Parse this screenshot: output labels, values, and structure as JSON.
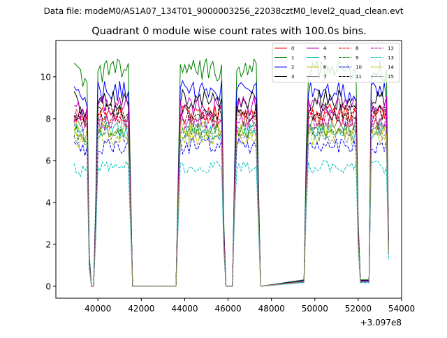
{
  "chart_data": {
    "type": "line",
    "suptitle": "Data file: modeM0/AS1A07_134T01_9000003256_22038cztM0_level2_quad_clean.evt",
    "title": "Quadrant 0 module wise count rates with 100.0s bins.",
    "xlabel": "",
    "ylabel": "",
    "x_offset_label": "+3.097e8",
    "x_offset": 309700000,
    "xlim": [
      38060,
      54000
    ],
    "ylim": [
      -0.57,
      11.73
    ],
    "xticks": [
      40000,
      42000,
      44000,
      46000,
      48000,
      50000,
      52000,
      54000
    ],
    "xtick_labels": [
      "40000",
      "42000",
      "44000",
      "46000",
      "48000",
      "50000",
      "52000",
      "54000"
    ],
    "yticks": [
      0,
      2,
      4,
      6,
      8,
      10
    ],
    "ytick_labels": [
      "0",
      "2",
      "4",
      "6",
      "8",
      "10"
    ],
    "grid": false,
    "legend_placement": "top-right",
    "x_start": 38900,
    "x_end": 53400,
    "x_step": 100,
    "envelope": [
      [
        38900,
        1
      ],
      [
        39500,
        0.95
      ],
      [
        39600,
        0.15
      ],
      [
        39700,
        0
      ],
      [
        39800,
        0
      ],
      [
        39900,
        0.4
      ],
      [
        40000,
        1
      ],
      [
        41400,
        1
      ],
      [
        41500,
        0.5
      ],
      [
        41600,
        0
      ],
      [
        43600,
        0
      ],
      [
        43700,
        0.5
      ],
      [
        43800,
        1
      ],
      [
        45700,
        1
      ],
      [
        45800,
        0.3
      ],
      [
        45900,
        0
      ],
      [
        46200,
        0
      ],
      [
        46300,
        0.6
      ],
      [
        46400,
        1
      ],
      [
        47300,
        1
      ],
      [
        47400,
        0.5
      ],
      [
        47500,
        0
      ],
      [
        49500,
        0.03
      ],
      [
        49600,
        0.6
      ],
      [
        49700,
        1
      ],
      [
        51900,
        1
      ],
      [
        52000,
        0.3
      ],
      [
        52100,
        0.03
      ],
      [
        52500,
        0.03
      ],
      [
        52600,
        1
      ],
      [
        53300,
        1
      ],
      [
        53400,
        0.22
      ]
    ],
    "series": [
      {
        "name": "0",
        "mean_level": 8.3,
        "color": "#ff0000",
        "dashed": false
      },
      {
        "name": "1",
        "mean_level": 10.3,
        "color": "#008000",
        "dashed": false
      },
      {
        "name": "2",
        "mean_level": 9.3,
        "color": "#0000ff",
        "dashed": false
      },
      {
        "name": "3",
        "mean_level": 8.9,
        "color": "#000000",
        "dashed": false
      },
      {
        "name": "4",
        "mean_level": 8.6,
        "color": "#bf00bf",
        "dashed": false
      },
      {
        "name": "5",
        "mean_level": 7.4,
        "color": "#00bfbf",
        "dashed": false
      },
      {
        "name": "6",
        "mean_level": 7.5,
        "color": "#bfbf00",
        "dashed": false
      },
      {
        "name": "7",
        "mean_level": 7.9,
        "color": "#808080",
        "dashed": false
      },
      {
        "name": "8",
        "mean_level": 8.1,
        "color": "#ff0000",
        "dashed": true
      },
      {
        "name": "9",
        "mean_level": 7.5,
        "color": "#008000",
        "dashed": true
      },
      {
        "name": "10",
        "mean_level": 6.7,
        "color": "#0000ff",
        "dashed": true
      },
      {
        "name": "11",
        "mean_level": 8.3,
        "color": "#000000",
        "dashed": true
      },
      {
        "name": "12",
        "mean_level": 7.9,
        "color": "#bf00bf",
        "dashed": true
      },
      {
        "name": "13",
        "mean_level": 5.7,
        "color": "#00bfbf",
        "dashed": true
      },
      {
        "name": "14",
        "mean_level": 7.1,
        "color": "#bfbf00",
        "dashed": true
      },
      {
        "name": "15",
        "mean_level": 7.2,
        "color": "#808080",
        "dashed": true
      }
    ]
  }
}
